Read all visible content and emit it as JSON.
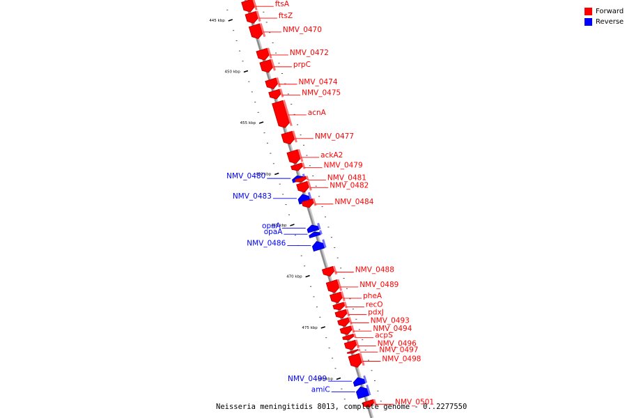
{
  "diagram": {
    "type": "linear genome map",
    "caption": "Neisseria meningitidis 8013, complete genome - 0..2277550",
    "colors": {
      "forward": "#ff0000",
      "reverse": "#0000ff",
      "axis": "#8c8c8c",
      "tick": "#000000"
    },
    "legend": [
      {
        "label": "Forward",
        "color": "#ff0000"
      },
      {
        "label": "Reverse",
        "color": "#0000ff"
      }
    ],
    "ticks": [
      {
        "kbp": 445,
        "label": "445 kbp"
      },
      {
        "kbp": 450,
        "label": "450 kbp"
      },
      {
        "kbp": 455,
        "label": "455 kbp"
      },
      {
        "kbp": 460,
        "label": "460 kbp"
      },
      {
        "kbp": 465,
        "label": "465 kbp"
      },
      {
        "kbp": 470,
        "label": "470 kbp"
      },
      {
        "kbp": 475,
        "label": "475 kbp"
      },
      {
        "kbp": 480,
        "label": "480 kbp"
      }
    ],
    "genes": [
      {
        "name": "ftsA",
        "strand": "forward",
        "start_kbp": 443.1,
        "end_kbp": 444.2
      },
      {
        "name": "ftsZ",
        "strand": "forward",
        "start_kbp": 444.3,
        "end_kbp": 445.3
      },
      {
        "name": "NMV_0470",
        "strand": "forward",
        "start_kbp": 445.5,
        "end_kbp": 446.8
      },
      {
        "name": "NMV_0472",
        "strand": "forward",
        "start_kbp": 447.9,
        "end_kbp": 448.9
      },
      {
        "name": "prpC",
        "strand": "forward",
        "start_kbp": 449.0,
        "end_kbp": 450.1
      },
      {
        "name": "NMV_0474",
        "strand": "forward",
        "start_kbp": 450.8,
        "end_kbp": 451.7
      },
      {
        "name": "NMV_0475",
        "strand": "forward",
        "start_kbp": 451.9,
        "end_kbp": 452.7
      },
      {
        "name": "acnA",
        "strand": "forward",
        "start_kbp": 453.0,
        "end_kbp": 455.5
      },
      {
        "name": "NMV_0477",
        "strand": "forward",
        "start_kbp": 456.0,
        "end_kbp": 457.1
      },
      {
        "name": "ackA2",
        "strand": "forward",
        "start_kbp": 457.8,
        "end_kbp": 459.0
      },
      {
        "name": "NMV_0479",
        "strand": "forward",
        "start_kbp": 459.1,
        "end_kbp": 459.7
      },
      {
        "name": "NMV_0480",
        "strand": "reverse",
        "start_kbp": 460.2,
        "end_kbp": 460.7
      },
      {
        "name": "NMV_0481",
        "strand": "forward",
        "start_kbp": 460.4,
        "end_kbp": 460.8
      },
      {
        "name": "NMV_0482",
        "strand": "forward",
        "start_kbp": 460.9,
        "end_kbp": 461.8
      },
      {
        "name": "NMV_0483",
        "strand": "reverse",
        "start_kbp": 462.0,
        "end_kbp": 462.8
      },
      {
        "name": "NMV_0484",
        "strand": "forward",
        "start_kbp": 462.6,
        "end_kbp": 463.3
      },
      {
        "name": "opaA",
        "strand": "reverse",
        "start_kbp": 465.0,
        "end_kbp": 465.6
      },
      {
        "name": "opaA",
        "strand": "reverse",
        "start_kbp": 465.7,
        "end_kbp": 466.1
      },
      {
        "name": "NMV_0486",
        "strand": "reverse",
        "start_kbp": 466.6,
        "end_kbp": 467.4
      },
      {
        "name": "NMV_0488",
        "strand": "forward",
        "start_kbp": 469.2,
        "end_kbp": 470.0
      },
      {
        "name": "NMV_0489",
        "strand": "forward",
        "start_kbp": 470.5,
        "end_kbp": 471.6
      },
      {
        "name": "pheA",
        "strand": "forward",
        "start_kbp": 471.7,
        "end_kbp": 472.6
      },
      {
        "name": "recO",
        "strand": "forward",
        "start_kbp": 472.7,
        "end_kbp": 473.3
      },
      {
        "name": "pdxJ",
        "strand": "forward",
        "start_kbp": 473.4,
        "end_kbp": 474.1
      },
      {
        "name": "NMV_0493",
        "strand": "forward",
        "start_kbp": 474.2,
        "end_kbp": 474.9
      },
      {
        "name": "NMV_0494",
        "strand": "forward",
        "start_kbp": 475.0,
        "end_kbp": 475.7
      },
      {
        "name": "acpS",
        "strand": "forward",
        "start_kbp": 475.8,
        "end_kbp": 476.2
      },
      {
        "name": "NMV_0496",
        "strand": "forward",
        "start_kbp": 476.4,
        "end_kbp": 477.2
      },
      {
        "name": "NMV_0497",
        "strand": "forward",
        "start_kbp": 477.3,
        "end_kbp": 477.5
      },
      {
        "name": "NMV_0498",
        "strand": "forward",
        "start_kbp": 477.7,
        "end_kbp": 478.9
      },
      {
        "name": "NMV_0499",
        "strand": "reverse",
        "start_kbp": 479.9,
        "end_kbp": 480.6
      },
      {
        "name": "amiC",
        "strand": "reverse",
        "start_kbp": 480.8,
        "end_kbp": 481.8
      },
      {
        "name": "NMV_0501",
        "strand": "forward",
        "start_kbp": 482.2,
        "end_kbp": 482.8
      }
    ]
  }
}
